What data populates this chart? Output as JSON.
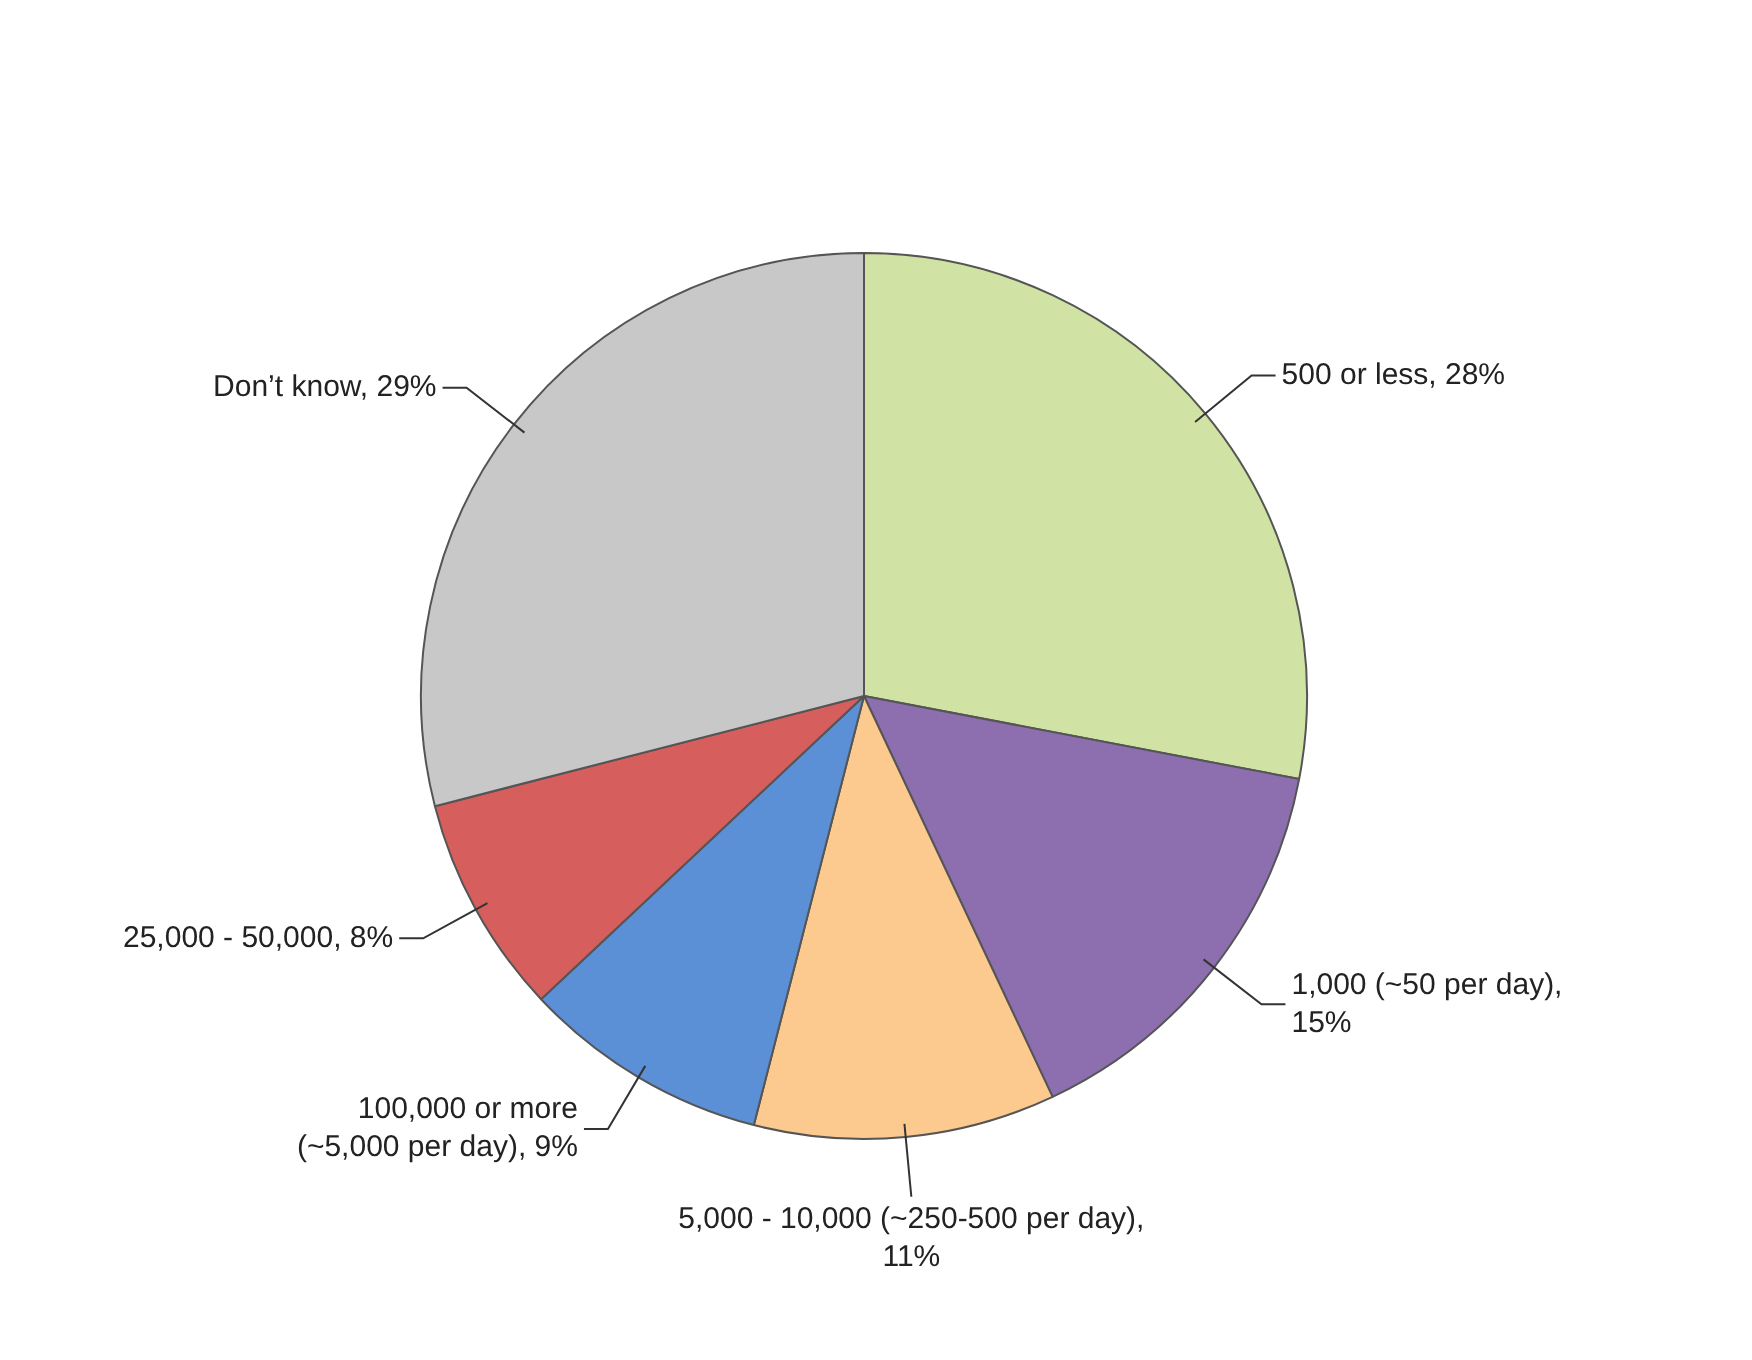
{
  "chart_data": {
    "type": "pie",
    "categories": [
      "500 or less, 28%",
      "1,000 (~50 per day), 15%",
      "5,000 - 10,000 (~250-500 per day), 11%",
      "100,000 or more (~5,000 per day), 9%",
      "25,000 - 50,000, 8%",
      "Don’t know, 29%"
    ],
    "values": [
      28,
      15,
      11,
      9,
      8,
      29
    ],
    "colors": [
      "#d0e3a4",
      "#8d6fb0",
      "#fcc98f",
      "#5b8fd6",
      "#d65f5e",
      "#c8c8c8"
    ],
    "legend": false
  }
}
